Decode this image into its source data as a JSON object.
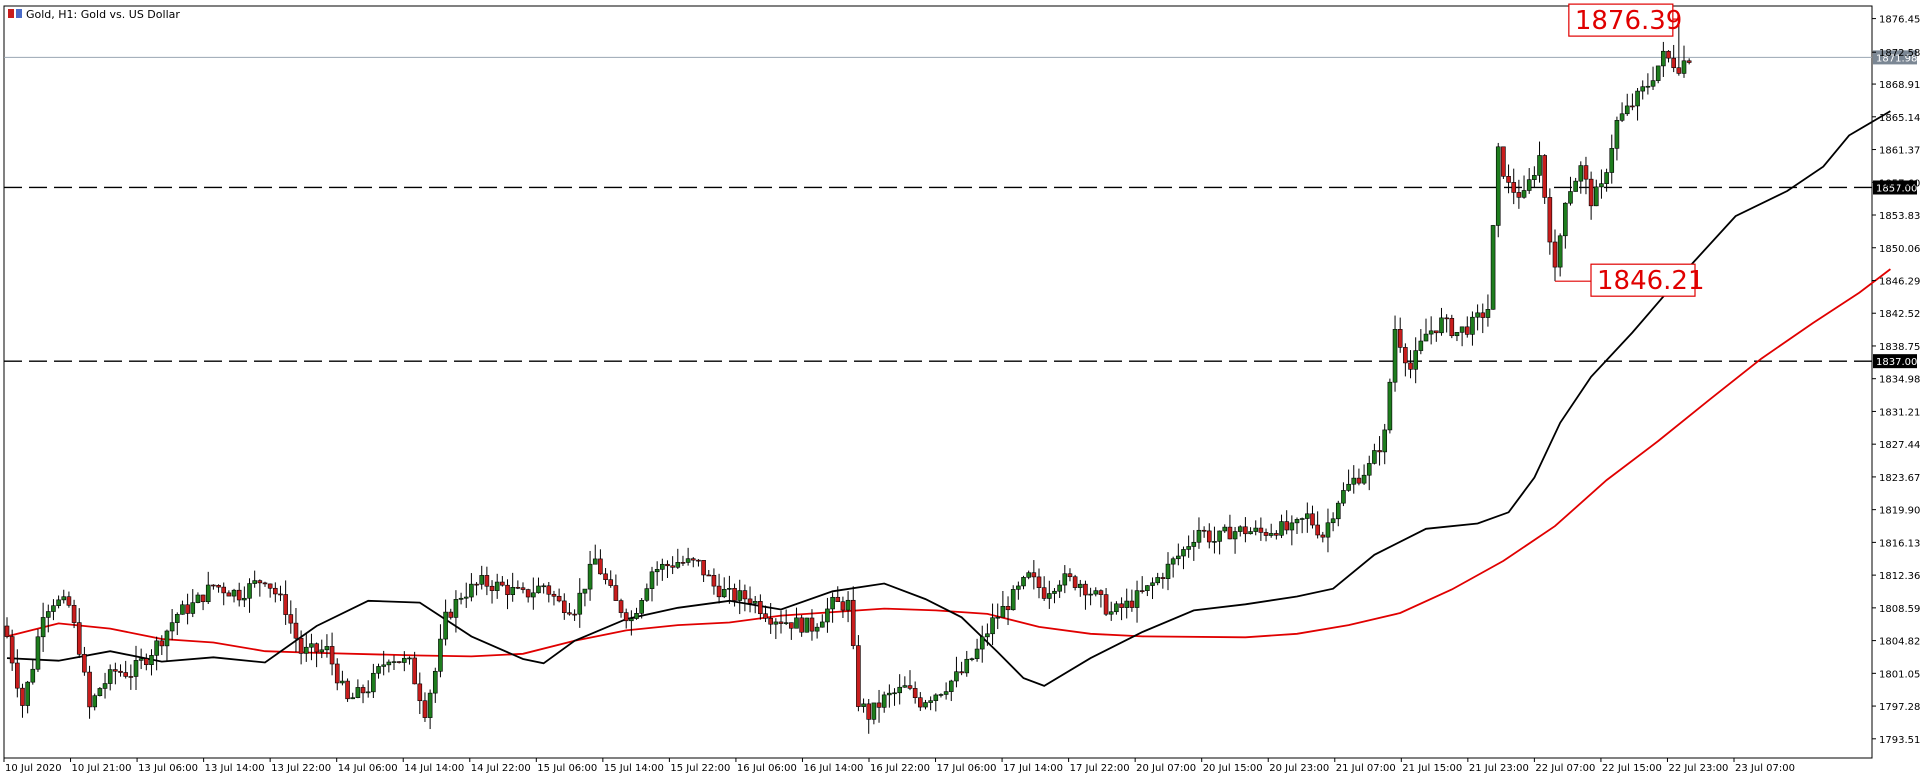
{
  "window": {
    "title": "Gold, H1:  Gold vs. US Dollar"
  },
  "colors": {
    "bull": "#1e7d1e",
    "bear": "#c81d1d",
    "ma_fast": "#000000",
    "ma_slow": "#e00000",
    "grid": "#e6e6e6",
    "hline": "#000000",
    "price_line": "#9aa6b2",
    "tag_dark": "#000000",
    "tag_price": "#7b8794"
  },
  "chart_data": {
    "type": "candlestick",
    "symbol": "Gold",
    "timeframe": "H1",
    "description": "Gold vs. US Dollar",
    "x_labels": [
      "10 Jul 2020",
      "10 Jul 21:00",
      "13 Jul 06:00",
      "13 Jul 14:00",
      "13 Jul 22:00",
      "14 Jul 06:00",
      "14 Jul 14:00",
      "14 Jul 22:00",
      "15 Jul 06:00",
      "15 Jul 14:00",
      "15 Jul 22:00",
      "16 Jul 06:00",
      "16 Jul 14:00",
      "16 Jul 22:00",
      "17 Jul 06:00",
      "17 Jul 14:00",
      "17 Jul 22:00",
      "20 Jul 07:00",
      "20 Jul 15:00",
      "20 Jul 23:00",
      "21 Jul 07:00",
      "21 Jul 15:00",
      "21 Jul 23:00",
      "22 Jul 07:00",
      "22 Jul 15:00",
      "22 Jul 23:00",
      "23 Jul 07:00"
    ],
    "y_ticks": [
      "1876.45",
      "1872.58",
      "1868.91",
      "1865.14",
      "1861.37",
      "1857.60",
      "1853.83",
      "1850.06",
      "1846.29",
      "1842.52",
      "1838.75",
      "1834.98",
      "1831.21",
      "1827.44",
      "1823.67",
      "1819.90",
      "1816.13",
      "1812.36",
      "1808.59",
      "1804.82",
      "1801.05",
      "1797.28",
      "1793.51"
    ],
    "ylim": [
      1791.3,
      1877.9
    ],
    "horizontal_lines": [
      {
        "value": 1857.0,
        "label": "1857.00",
        "style": "dashed"
      },
      {
        "value": 1837.0,
        "label": "1837.00",
        "style": "dashed"
      }
    ],
    "current_price": {
      "value": 1871.98,
      "label": "1871.98"
    },
    "annotations": [
      {
        "text": "1876.39",
        "value": 1876.39,
        "type": "high"
      },
      {
        "text": "1846.21",
        "value": 1846.21,
        "type": "low"
      }
    ],
    "moving_averages": [
      {
        "period": "fast",
        "color": "#000000",
        "points": [
          [
            0,
            1802.8
          ],
          [
            10,
            1802.5
          ],
          [
            20,
            1803.6
          ],
          [
            30,
            1802.4
          ],
          [
            40,
            1802.9
          ],
          [
            50,
            1802.3
          ],
          [
            60,
            1806.5
          ],
          [
            70,
            1809.4
          ],
          [
            80,
            1809.2
          ],
          [
            90,
            1805.3
          ],
          [
            100,
            1802.7
          ],
          [
            104,
            1802.2
          ],
          [
            110,
            1804.8
          ],
          [
            120,
            1807.3
          ],
          [
            130,
            1808.6
          ],
          [
            140,
            1809.4
          ],
          [
            150,
            1808.4
          ],
          [
            160,
            1810.5
          ],
          [
            170,
            1811.4
          ],
          [
            178,
            1809.6
          ],
          [
            185,
            1807.5
          ],
          [
            192,
            1803.5
          ],
          [
            197,
            1800.5
          ],
          [
            201,
            1799.6
          ],
          [
            210,
            1802.8
          ],
          [
            220,
            1805.8
          ],
          [
            230,
            1808.3
          ],
          [
            240,
            1809.0
          ],
          [
            250,
            1809.9
          ],
          [
            257,
            1810.8
          ],
          [
            265,
            1814.7
          ],
          [
            275,
            1817.7
          ],
          [
            285,
            1818.3
          ],
          [
            291,
            1819.6
          ],
          [
            296,
            1823.6
          ],
          [
            301,
            1829.9
          ],
          [
            307,
            1835.2
          ],
          [
            315,
            1840.3
          ],
          [
            325,
            1847.2
          ],
          [
            335,
            1853.7
          ],
          [
            345,
            1856.6
          ],
          [
            352,
            1859.4
          ],
          [
            357,
            1863.0
          ],
          [
            365,
            1865.8
          ]
        ]
      },
      {
        "period": "slow",
        "color": "#e00000",
        "points": [
          [
            0,
            1805.3
          ],
          [
            10,
            1806.8
          ],
          [
            20,
            1806.2
          ],
          [
            30,
            1805.0
          ],
          [
            40,
            1804.6
          ],
          [
            50,
            1803.6
          ],
          [
            60,
            1803.4
          ],
          [
            80,
            1803.1
          ],
          [
            90,
            1803.0
          ],
          [
            100,
            1803.3
          ],
          [
            110,
            1804.8
          ],
          [
            120,
            1806.0
          ],
          [
            130,
            1806.6
          ],
          [
            140,
            1806.9
          ],
          [
            150,
            1807.7
          ],
          [
            170,
            1808.5
          ],
          [
            180,
            1808.3
          ],
          [
            190,
            1807.9
          ],
          [
            200,
            1806.4
          ],
          [
            210,
            1805.6
          ],
          [
            220,
            1805.3
          ],
          [
            240,
            1805.2
          ],
          [
            250,
            1805.6
          ],
          [
            260,
            1806.6
          ],
          [
            270,
            1808.0
          ],
          [
            280,
            1810.7
          ],
          [
            290,
            1814.0
          ],
          [
            300,
            1818.0
          ],
          [
            310,
            1823.3
          ],
          [
            320,
            1827.8
          ],
          [
            330,
            1832.6
          ],
          [
            340,
            1837.3
          ],
          [
            350,
            1841.4
          ],
          [
            359,
            1844.9
          ],
          [
            365,
            1847.6
          ]
        ]
      }
    ],
    "candles_ohlc_waypoints": [
      [
        0,
        1805.3
      ],
      [
        3,
        1797.5
      ],
      [
        5,
        1802.0
      ],
      [
        7,
        1808.3
      ],
      [
        9,
        1809.4
      ],
      [
        12,
        1808.8
      ],
      [
        14,
        1804.0
      ],
      [
        16,
        1797.0
      ],
      [
        18,
        1799.4
      ],
      [
        21,
        1801.3
      ],
      [
        24,
        1801.1
      ],
      [
        27,
        1802.9
      ],
      [
        30,
        1805.1
      ],
      [
        33,
        1807.9
      ],
      [
        36,
        1808.9
      ],
      [
        40,
        1811.2
      ],
      [
        45,
        1810.2
      ],
      [
        50,
        1812.1
      ],
      [
        54,
        1808.5
      ],
      [
        57,
        1803.5
      ],
      [
        62,
        1803.7
      ],
      [
        66,
        1797.8
      ],
      [
        70,
        1799.4
      ],
      [
        74,
        1803.1
      ],
      [
        78,
        1802.1
      ],
      [
        81,
        1796.8
      ],
      [
        83,
        1801.3
      ],
      [
        85,
        1807.3
      ],
      [
        88,
        1810.1
      ],
      [
        92,
        1811.5
      ],
      [
        96,
        1811.0
      ],
      [
        100,
        1810.0
      ],
      [
        104,
        1811.2
      ],
      [
        107,
        1809.1
      ],
      [
        110,
        1808.6
      ],
      [
        114,
        1814.1
      ],
      [
        118,
        1809.1
      ],
      [
        121,
        1807.3
      ],
      [
        125,
        1812.9
      ],
      [
        130,
        1813.9
      ],
      [
        134,
        1813.6
      ],
      [
        137,
        1811.1
      ],
      [
        140,
        1810.0
      ],
      [
        144,
        1809.7
      ],
      [
        148,
        1807.6
      ],
      [
        152,
        1806.9
      ],
      [
        156,
        1806.4
      ],
      [
        160,
        1809.0
      ],
      [
        163,
        1809.0
      ],
      [
        165,
        1797.8
      ],
      [
        167,
        1796.2
      ],
      [
        170,
        1798.1
      ],
      [
        174,
        1799.3
      ],
      [
        177,
        1797.8
      ],
      [
        181,
        1799.2
      ],
      [
        185,
        1801.1
      ],
      [
        188,
        1803.6
      ],
      [
        191,
        1807.0
      ],
      [
        194,
        1809.1
      ],
      [
        198,
        1812.1
      ],
      [
        201,
        1810.4
      ],
      [
        204,
        1811.9
      ],
      [
        208,
        1811.5
      ],
      [
        211,
        1809.9
      ],
      [
        214,
        1808.0
      ],
      [
        217,
        1808.9
      ],
      [
        221,
        1810.7
      ],
      [
        224,
        1812.6
      ],
      [
        228,
        1815.2
      ],
      [
        231,
        1817.7
      ],
      [
        234,
        1816.3
      ],
      [
        237,
        1817.4
      ],
      [
        240,
        1817.5
      ],
      [
        243,
        1817.2
      ],
      [
        246,
        1817.8
      ],
      [
        249,
        1817.5
      ],
      [
        252,
        1819.1
      ],
      [
        255,
        1817.0
      ],
      [
        258,
        1821.1
      ],
      [
        261,
        1823.3
      ],
      [
        264,
        1824.8
      ],
      [
        267,
        1828.5
      ],
      [
        269,
        1840.8
      ],
      [
        272,
        1836.1
      ],
      [
        275,
        1840.1
      ],
      [
        278,
        1841.5
      ],
      [
        281,
        1840.3
      ],
      [
        284,
        1841.2
      ],
      [
        287,
        1843.1
      ],
      [
        289,
        1860.9
      ],
      [
        291,
        1857.1
      ],
      [
        294,
        1855.9
      ],
      [
        297,
        1860.6
      ],
      [
        300,
        1847.1
      ],
      [
        302,
        1855.9
      ],
      [
        305,
        1859.2
      ],
      [
        307,
        1855.6
      ],
      [
        309,
        1856.8
      ],
      [
        312,
        1864.5
      ],
      [
        315,
        1866.6
      ],
      [
        318,
        1868.9
      ],
      [
        321,
        1872.1
      ],
      [
        324,
        1871.0
      ],
      [
        326,
        1872.1
      ]
    ],
    "annotation_high_index": 324,
    "annotation_low_index": 300
  }
}
